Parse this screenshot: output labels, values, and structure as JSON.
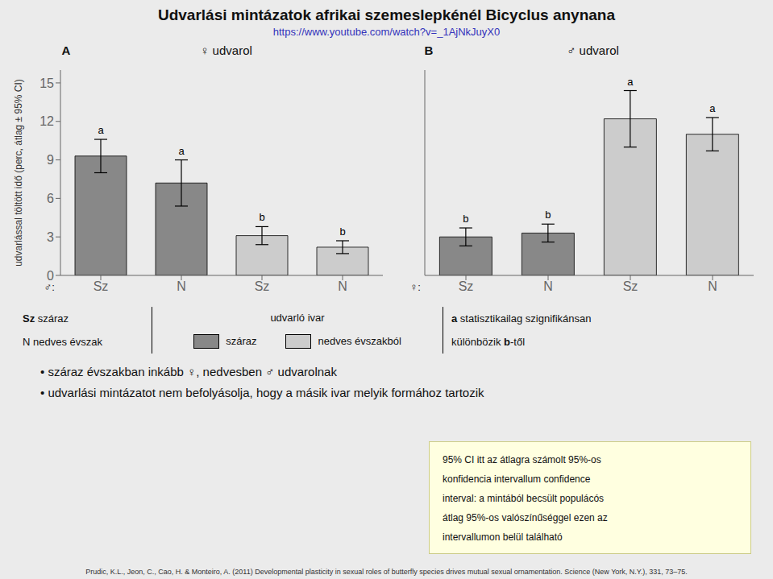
{
  "title": "Udvarlási mintázatok afrikai szemeslepkénél Bicyclus anynana",
  "subtitle": "https://www.youtube.com/watch?v=_1AjNkJuyX0",
  "legend_title": "udvarló ivar",
  "legend_entries": [
    {
      "name": "száraz",
      "color": "#888888"
    },
    {
      "name": "nedves évszakból",
      "color": "#CCCCCC"
    }
  ],
  "key_notes": [
    [
      "Sz",
      "száraz"
    ],
    [
      "N",
      "nedves évszak"
    ],
    [
      "a",
      "statisztikailag szignifikánsan"
    ],
    [
      "különbözik ",
      "b",
      "-től"
    ]
  ],
  "bullets": [
    "•  száraz évszakban inkább ♀, nedvesben ♂ udvarolnak",
    "•  udvarlási mintázatot nem befolyásolja, hogy a másik ivar melyik formához tartozik"
  ],
  "note_box": [
    "95% CI itt az átlagra számolt 95%-os",
    "konfidencia intervallum confidence",
    "interval: a mintából becsült populácós",
    "átlag 95%-os valószínűséggel ezen az",
    "intervallumon belül található"
  ],
  "footer": "Prudic, K.L., Jeon, C., Cao, H. & Monteiro, A. (2011) Developmental plasticity in sexual roles of butterfly species drives mutual sexual ornamentation. Science (New York, N.Y.), 331, 73–75.",
  "chart_data": [
    {
      "type": "bar",
      "label": "A",
      "title": "♀ udvarol",
      "ylabel": "udvarlással töltött idő (perc, átlag ± 95% CI)",
      "xlabel": "♂:",
      "categories": [
        "Sz",
        "N",
        "Sz",
        "N"
      ],
      "values": [
        9.3,
        7.2,
        3.1,
        2.2
      ],
      "errors": [
        1.3,
        1.8,
        0.7,
        0.5
      ],
      "colors": [
        "#888888",
        "#888888",
        "#CCCCCC",
        "#CCCCCC"
      ],
      "significance_labels": [
        "a",
        "a",
        "b",
        "b"
      ],
      "ylim": [
        0,
        16
      ],
      "yticks": [
        0,
        3,
        6,
        9,
        12,
        15
      ],
      "grid": false
    },
    {
      "type": "bar",
      "label": "B",
      "title": "♂ udvarol",
      "xlabel": "♀:",
      "categories": [
        "Sz",
        "N",
        "Sz",
        "N"
      ],
      "values": [
        3.0,
        3.3,
        12.2,
        11.0
      ],
      "errors": [
        0.7,
        0.7,
        2.2,
        1.3
      ],
      "colors": [
        "#888888",
        "#888888",
        "#CCCCCC",
        "#CCCCCC"
      ],
      "significance_labels": [
        "b",
        "b",
        "a",
        "a"
      ],
      "ylim": [
        0,
        16
      ],
      "yticks": [
        0,
        3,
        6,
        9,
        12,
        15
      ],
      "grid": false,
      "tick_labels": "x"
    }
  ]
}
